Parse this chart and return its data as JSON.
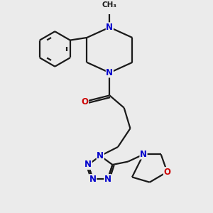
{
  "background_color": "#ebebeb",
  "bond_color": "#1a1a1a",
  "N_color": "#0000cc",
  "O_color": "#cc0000",
  "line_width": 1.6,
  "font_size_atom": 8.5,
  "fig_size": [
    3.0,
    3.0
  ],
  "dpi": 100,
  "xlim": [
    0,
    10
  ],
  "ylim": [
    0,
    10
  ]
}
